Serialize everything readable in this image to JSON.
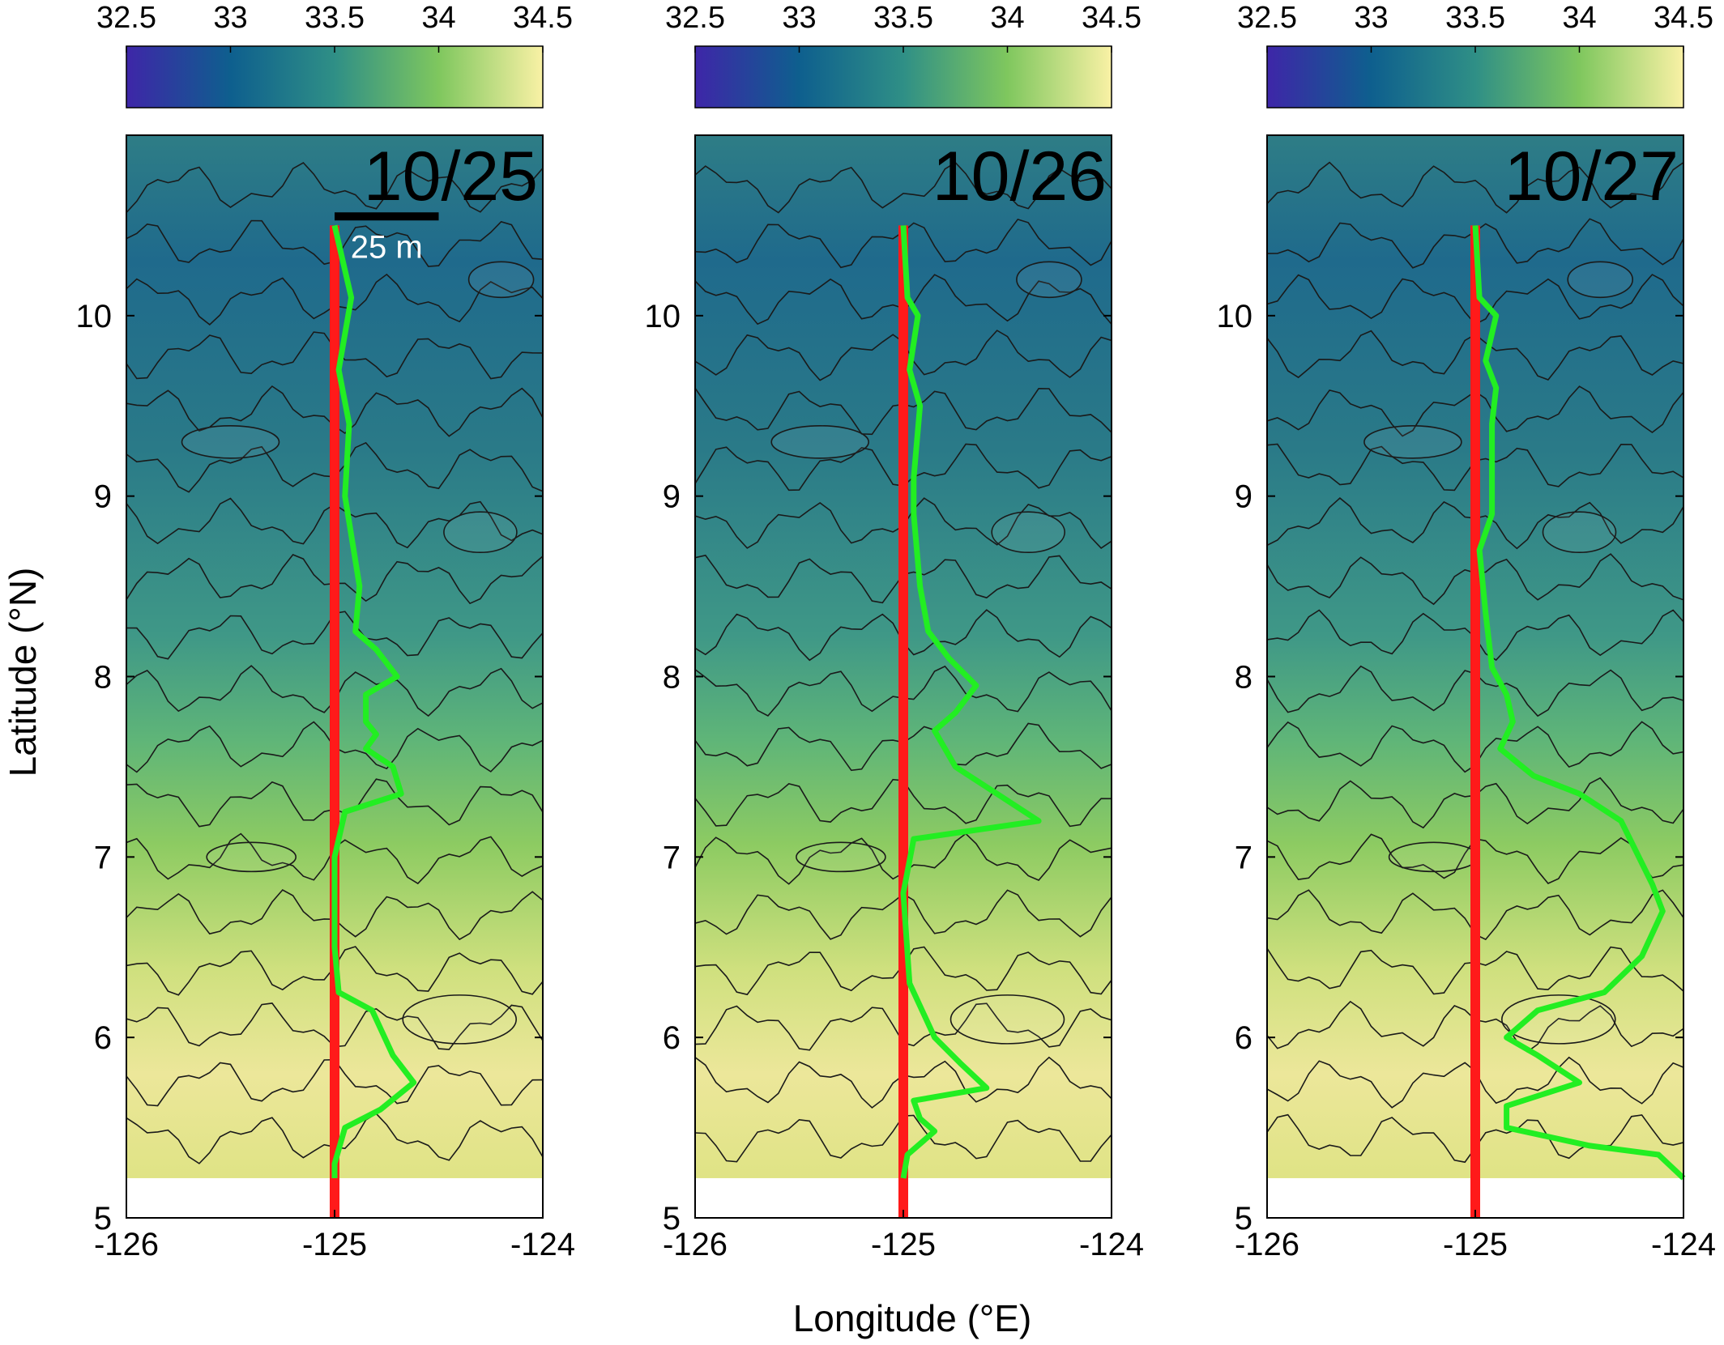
{
  "chart_data": {
    "type": "heatmap",
    "xlabel": "Longitude (°E)",
    "ylabel": "Latitude (°N)",
    "xlim": [
      -126,
      -124
    ],
    "ylim": [
      5,
      11
    ],
    "x_ticks": [
      "-126",
      "-125",
      "-124"
    ],
    "y_ticks": [
      "5",
      "6",
      "7",
      "8",
      "9",
      "10"
    ],
    "colorbar": {
      "range": [
        32.5,
        34.5
      ],
      "ticks": [
        "32.5",
        "33",
        "33.5",
        "34",
        "34.5"
      ],
      "colormap": "parula-like (dark blue to pale yellow)"
    },
    "scale_bar_label": "25 m",
    "data_ymin": 5.22,
    "track_longitude": -125,
    "line_colors": {
      "track": "#ff1a1a",
      "profile": "#22ee22"
    },
    "panels": [
      {
        "date": "10/25",
        "show_scale_bar": true,
        "profile": [
          [
            -125.0,
            10.5
          ],
          [
            -124.92,
            10.1
          ],
          [
            -124.98,
            9.7
          ],
          [
            -124.93,
            9.4
          ],
          [
            -124.95,
            9.0
          ],
          [
            -124.88,
            8.5
          ],
          [
            -124.9,
            8.25
          ],
          [
            -124.8,
            8.15
          ],
          [
            -124.7,
            8.0
          ],
          [
            -124.85,
            7.9
          ],
          [
            -124.85,
            7.75
          ],
          [
            -124.8,
            7.68
          ],
          [
            -124.85,
            7.6
          ],
          [
            -124.72,
            7.5
          ],
          [
            -124.68,
            7.35
          ],
          [
            -124.95,
            7.25
          ],
          [
            -125.0,
            7.0
          ],
          [
            -125.0,
            6.5
          ],
          [
            -124.98,
            6.25
          ],
          [
            -124.82,
            6.15
          ],
          [
            -124.72,
            5.9
          ],
          [
            -124.62,
            5.75
          ],
          [
            -124.78,
            5.6
          ],
          [
            -124.95,
            5.5
          ],
          [
            -125.0,
            5.3
          ],
          [
            -125.0,
            5.22
          ]
        ]
      },
      {
        "date": "10/26",
        "show_scale_bar": false,
        "profile": [
          [
            -125.0,
            10.5
          ],
          [
            -124.98,
            10.1
          ],
          [
            -124.93,
            10.0
          ],
          [
            -124.97,
            9.7
          ],
          [
            -124.92,
            9.5
          ],
          [
            -124.95,
            9.1
          ],
          [
            -124.95,
            8.9
          ],
          [
            -124.92,
            8.5
          ],
          [
            -124.88,
            8.25
          ],
          [
            -124.78,
            8.1
          ],
          [
            -124.65,
            7.95
          ],
          [
            -124.75,
            7.8
          ],
          [
            -124.85,
            7.7
          ],
          [
            -124.75,
            7.5
          ],
          [
            -124.55,
            7.35
          ],
          [
            -124.35,
            7.2
          ],
          [
            -124.95,
            7.1
          ],
          [
            -125.0,
            6.8
          ],
          [
            -124.97,
            6.3
          ],
          [
            -124.85,
            6.0
          ],
          [
            -124.72,
            5.85
          ],
          [
            -124.6,
            5.72
          ],
          [
            -124.95,
            5.65
          ],
          [
            -124.92,
            5.55
          ],
          [
            -124.85,
            5.48
          ],
          [
            -124.98,
            5.35
          ],
          [
            -125.0,
            5.22
          ]
        ]
      },
      {
        "date": "10/27",
        "show_scale_bar": false,
        "profile": [
          [
            -125.0,
            10.5
          ],
          [
            -124.98,
            10.1
          ],
          [
            -124.9,
            10.0
          ],
          [
            -124.95,
            9.75
          ],
          [
            -124.9,
            9.6
          ],
          [
            -124.92,
            9.4
          ],
          [
            -124.92,
            8.9
          ],
          [
            -124.98,
            8.7
          ],
          [
            -124.95,
            8.35
          ],
          [
            -124.92,
            8.05
          ],
          [
            -124.85,
            7.9
          ],
          [
            -124.82,
            7.75
          ],
          [
            -124.88,
            7.6
          ],
          [
            -124.72,
            7.45
          ],
          [
            -124.5,
            7.35
          ],
          [
            -124.3,
            7.2
          ],
          [
            -124.15,
            6.85
          ],
          [
            -124.1,
            6.7
          ],
          [
            -124.2,
            6.45
          ],
          [
            -124.38,
            6.25
          ],
          [
            -124.7,
            6.15
          ],
          [
            -124.85,
            6.0
          ],
          [
            -124.7,
            5.9
          ],
          [
            -124.5,
            5.75
          ],
          [
            -124.85,
            5.62
          ],
          [
            -124.85,
            5.5
          ],
          [
            -124.45,
            5.4
          ],
          [
            -124.12,
            5.35
          ],
          [
            -124.0,
            5.22
          ]
        ]
      }
    ]
  }
}
